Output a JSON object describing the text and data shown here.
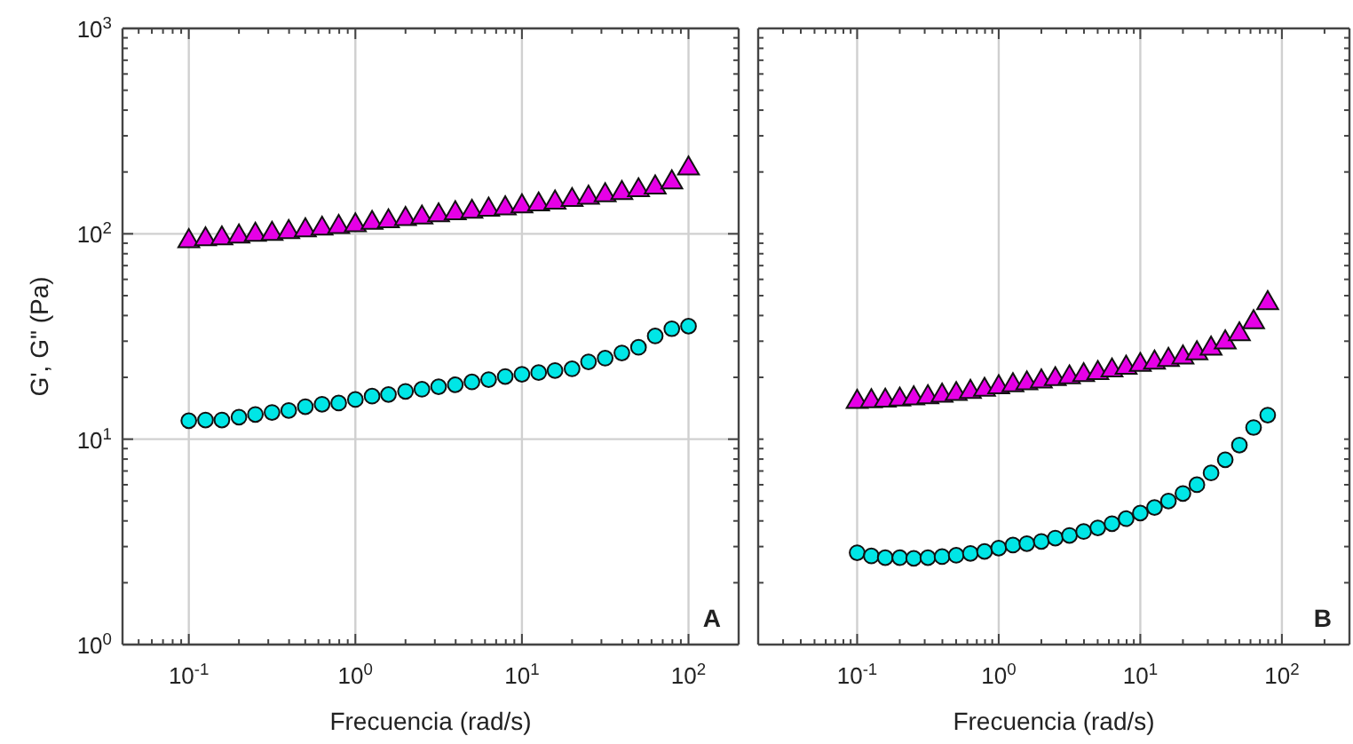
{
  "chart_data": [
    {
      "type": "scatter",
      "xlabel": "Frecuencia (rad/s)",
      "ylabel": "G', G\" (Pa)",
      "log": "xy",
      "grid": true,
      "annotations": [
        "A"
      ],
      "xlim": [
        0.04,
        200
      ],
      "ylim": [
        1,
        1000
      ],
      "xticks": [
        {
          "value": 0.05,
          "label": null
        },
        {
          "value": 0.06,
          "label": null
        },
        {
          "value": 0.07,
          "label": null
        },
        {
          "value": 0.08,
          "label": null
        },
        {
          "value": 0.09,
          "label": null
        },
        {
          "value": 0.1,
          "label": "10$^{-1}$"
        },
        {
          "value": 0.2,
          "label": null
        },
        {
          "value": 0.3,
          "label": null
        },
        {
          "value": 0.4,
          "label": null
        },
        {
          "value": 0.5,
          "label": null
        },
        {
          "value": 0.6,
          "label": null
        },
        {
          "value": 0.7,
          "label": null
        },
        {
          "value": 0.8,
          "label": null
        },
        {
          "value": 0.9,
          "label": null
        },
        {
          "value": 1,
          "label": "10$^{0}$"
        },
        {
          "value": 2,
          "label": null
        },
        {
          "value": 3,
          "label": null
        },
        {
          "value": 4,
          "label": null
        },
        {
          "value": 5,
          "label": null
        },
        {
          "value": 6,
          "label": null
        },
        {
          "value": 7,
          "label": null
        },
        {
          "value": 8,
          "label": null
        },
        {
          "value": 9,
          "label": null
        },
        {
          "value": 10,
          "label": "10$^{1}$"
        },
        {
          "value": 20,
          "label": null
        },
        {
          "value": 30,
          "label": null
        },
        {
          "value": 40,
          "label": null
        },
        {
          "value": 50,
          "label": null
        },
        {
          "value": 60,
          "label": null
        },
        {
          "value": 70,
          "label": null
        },
        {
          "value": 80,
          "label": null
        },
        {
          "value": 90,
          "label": null
        },
        {
          "value": 100,
          "label": "10$^{2}$"
        },
        {
          "value": 200,
          "label": null
        }
      ],
      "yticks": [
        {
          "value": 1,
          "label": "10$^{0}$"
        },
        {
          "value": 2,
          "label": null
        },
        {
          "value": 3,
          "label": null
        },
        {
          "value": 4,
          "label": null
        },
        {
          "value": 5,
          "label": null
        },
        {
          "value": 6,
          "label": null
        },
        {
          "value": 7,
          "label": null
        },
        {
          "value": 8,
          "label": null
        },
        {
          "value": 9,
          "label": null
        },
        {
          "value": 10,
          "label": "10$^{1}$"
        },
        {
          "value": 20,
          "label": null
        },
        {
          "value": 30,
          "label": null
        },
        {
          "value": 40,
          "label": null
        },
        {
          "value": 50,
          "label": null
        },
        {
          "value": 60,
          "label": null
        },
        {
          "value": 70,
          "label": null
        },
        {
          "value": 80,
          "label": null
        },
        {
          "value": 90,
          "label": null
        },
        {
          "value": 100,
          "label": "10$^{2}$"
        },
        {
          "value": 200,
          "label": null
        },
        {
          "value": 300,
          "label": null
        },
        {
          "value": 400,
          "label": null
        },
        {
          "value": 500,
          "label": null
        },
        {
          "value": 600,
          "label": null
        },
        {
          "value": 700,
          "label": null
        },
        {
          "value": 800,
          "label": null
        },
        {
          "value": 900,
          "label": null
        },
        {
          "value": 1000,
          "label": "10$^{3}$"
        }
      ],
      "x": [
        0.1,
        0.126,
        0.158,
        0.2,
        0.251,
        0.316,
        0.398,
        0.501,
        0.631,
        0.794,
        1,
        1.26,
        1.58,
        2,
        2.51,
        3.16,
        3.98,
        5.01,
        6.31,
        7.94,
        10,
        12.6,
        15.8,
        20,
        25.1,
        31.6,
        39.8,
        50.1,
        63.1,
        79.4,
        100
      ],
      "series": [
        {
          "color": "#e600e6",
          "marker": "triangle",
          "values": [
            92,
            94,
            95,
            97,
            99,
            100,
            102,
            104,
            106,
            108,
            110,
            113,
            115,
            118,
            120,
            123,
            126,
            128,
            131,
            133,
            136,
            139,
            142,
            146,
            150,
            154,
            158,
            163,
            168,
            178,
            208
          ]
        },
        {
          "color": "#00e6e6",
          "marker": "circle",
          "values": [
            12.3,
            12.4,
            12.4,
            12.8,
            13.2,
            13.5,
            13.8,
            14.4,
            14.8,
            15.0,
            15.6,
            16.2,
            16.5,
            17.1,
            17.5,
            18.0,
            18.4,
            19.0,
            19.5,
            20.2,
            20.7,
            21.1,
            21.6,
            22.0,
            23.8,
            24.8,
            26.3,
            28.0,
            31.8,
            34.5,
            35.5
          ]
        }
      ]
    },
    {
      "type": "scatter",
      "xlabel": "Frecuencia (rad/s)",
      "log": "xy",
      "grid": true,
      "tick_labels": "x",
      "annotations": [
        "B"
      ],
      "xlim": [
        0.02,
        300
      ],
      "ylim": [
        1,
        1000
      ],
      "xticks": [
        {
          "value": 0.02,
          "label": null
        },
        {
          "value": 0.03,
          "label": null
        },
        {
          "value": 0.04,
          "label": null
        },
        {
          "value": 0.05,
          "label": null
        },
        {
          "value": 0.06,
          "label": null
        },
        {
          "value": 0.07,
          "label": null
        },
        {
          "value": 0.08,
          "label": null
        },
        {
          "value": 0.09,
          "label": null
        },
        {
          "value": 0.1,
          "label": "10$^{-1}$"
        },
        {
          "value": 0.2,
          "label": null
        },
        {
          "value": 0.3,
          "label": null
        },
        {
          "value": 0.4,
          "label": null
        },
        {
          "value": 0.5,
          "label": null
        },
        {
          "value": 0.6,
          "label": null
        },
        {
          "value": 0.7,
          "label": null
        },
        {
          "value": 0.8,
          "label": null
        },
        {
          "value": 0.9,
          "label": null
        },
        {
          "value": 1,
          "label": "10$^{0}$"
        },
        {
          "value": 2,
          "label": null
        },
        {
          "value": 3,
          "label": null
        },
        {
          "value": 4,
          "label": null
        },
        {
          "value": 5,
          "label": null
        },
        {
          "value": 6,
          "label": null
        },
        {
          "value": 7,
          "label": null
        },
        {
          "value": 8,
          "label": null
        },
        {
          "value": 9,
          "label": null
        },
        {
          "value": 10,
          "label": "10$^{1}$"
        },
        {
          "value": 20,
          "label": null
        },
        {
          "value": 30,
          "label": null
        },
        {
          "value": 40,
          "label": null
        },
        {
          "value": 50,
          "label": null
        },
        {
          "value": 60,
          "label": null
        },
        {
          "value": 70,
          "label": null
        },
        {
          "value": 80,
          "label": null
        },
        {
          "value": 90,
          "label": null
        },
        {
          "value": 100,
          "label": "10$^{2}$"
        },
        {
          "value": 200,
          "label": null
        },
        {
          "value": 300,
          "label": null
        }
      ],
      "yticks": [
        {
          "value": 1,
          "label": null
        },
        {
          "value": 2,
          "label": null
        },
        {
          "value": 3,
          "label": null
        },
        {
          "value": 4,
          "label": null
        },
        {
          "value": 5,
          "label": null
        },
        {
          "value": 6,
          "label": null
        },
        {
          "value": 7,
          "label": null
        },
        {
          "value": 8,
          "label": null
        },
        {
          "value": 9,
          "label": null
        },
        {
          "value": 10,
          "label": null
        },
        {
          "value": 20,
          "label": null
        },
        {
          "value": 30,
          "label": null
        },
        {
          "value": 40,
          "label": null
        },
        {
          "value": 50,
          "label": null
        },
        {
          "value": 60,
          "label": null
        },
        {
          "value": 70,
          "label": null
        },
        {
          "value": 80,
          "label": null
        },
        {
          "value": 90,
          "label": null
        },
        {
          "value": 100,
          "label": null
        },
        {
          "value": 200,
          "label": null
        },
        {
          "value": 300,
          "label": null
        },
        {
          "value": 400,
          "label": null
        },
        {
          "value": 500,
          "label": null
        },
        {
          "value": 600,
          "label": null
        },
        {
          "value": 700,
          "label": null
        },
        {
          "value": 800,
          "label": null
        },
        {
          "value": 900,
          "label": null
        },
        {
          "value": 1000,
          "label": null
        }
      ],
      "x": [
        0.1,
        0.126,
        0.158,
        0.2,
        0.251,
        0.316,
        0.398,
        0.501,
        0.631,
        0.794,
        1,
        1.26,
        1.58,
        2,
        2.51,
        3.16,
        3.98,
        5.01,
        6.31,
        7.94,
        10,
        12.6,
        15.8,
        20,
        25.1,
        31.6,
        39.8,
        50.1,
        63.1,
        79.4
      ],
      "series": [
        {
          "color": "#e600e6",
          "marker": "triangle",
          "values": [
            15.2,
            15.3,
            15.4,
            15.6,
            15.8,
            16.0,
            16.3,
            16.6,
            17.0,
            17.4,
            17.9,
            18.3,
            18.7,
            19.1,
            19.6,
            20.0,
            20.5,
            21.0,
            21.6,
            22.3,
            23.0,
            23.6,
            24.3,
            25.0,
            26.2,
            27.6,
            29.6,
            32.4,
            37.1,
            46
          ]
        },
        {
          "color": "#00e6e6",
          "marker": "circle",
          "values": [
            2.8,
            2.7,
            2.65,
            2.65,
            2.63,
            2.65,
            2.68,
            2.72,
            2.78,
            2.84,
            2.95,
            3.05,
            3.1,
            3.18,
            3.3,
            3.4,
            3.55,
            3.7,
            3.88,
            4.1,
            4.37,
            4.65,
            5.0,
            5.44,
            6.0,
            6.85,
            7.94,
            9.36,
            11.4,
            13.1
          ]
        }
      ]
    }
  ]
}
